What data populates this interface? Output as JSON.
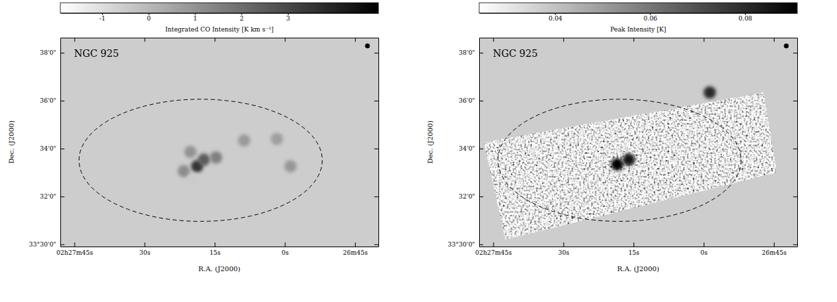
{
  "chart_data": [
    {
      "type": "heatmap",
      "title": "NGC 925",
      "x_label": "R.A. (J2000)",
      "y_label": "Dec. (J2000)",
      "xlim": [
        8868,
        8800
      ],
      "xticks": [
        {
          "value": 8865,
          "label": "02h27m45s"
        },
        {
          "value": 8850,
          "label": "30s"
        },
        {
          "value": 8835,
          "label": "15s"
        },
        {
          "value": 8820,
          "label": "0s"
        },
        {
          "value": 8805,
          "label": "26m45s"
        }
      ],
      "ylim": [
        29.91,
        38.63
      ],
      "yticks": [
        {
          "value": 30,
          "label": "33°30'0\""
        },
        {
          "value": 32,
          "label": "32'0\""
        },
        {
          "value": 34,
          "label": "34'0\""
        },
        {
          "value": 36,
          "label": "36'0\""
        },
        {
          "value": 38,
          "label": "38'0\""
        }
      ],
      "colorbar": {
        "label": "Integrated CO Intensity [K km s⁻¹]",
        "range": [
          -1.9,
          4.95
        ],
        "ticks": [
          -1,
          0,
          1,
          2,
          3
        ]
      },
      "sources": {
        "x": [
          8838.75,
          8837.3,
          8834.7,
          8841.6,
          8840.2,
          8828.7,
          8821.7,
          8818.8,
          8839.5
        ],
        "y": [
          33.26,
          33.54,
          33.63,
          33.06,
          33.86,
          34.34,
          34.4,
          33.26,
          32.71
        ],
        "values": [
          3.5,
          2.5,
          1.5,
          1.2,
          1.0,
          0.8,
          0.7,
          0.9,
          -0.5
        ]
      },
      "ellipse": {
        "x": 8838,
        "y": 33.51,
        "rx": 26,
        "ry": 2.55
      }
    },
    {
      "type": "heatmap",
      "title": "NGC 925",
      "x_label": "R.A. (J2000)",
      "y_label": "Dec. (J2000)",
      "xlim": [
        8868,
        8800
      ],
      "xticks": [
        {
          "value": 8865,
          "label": "02h27m45s"
        },
        {
          "value": 8850,
          "label": "30s"
        },
        {
          "value": 8835,
          "label": "15s"
        },
        {
          "value": 8820,
          "label": "0s"
        },
        {
          "value": 8805,
          "label": "26m45s"
        }
      ],
      "ylim": [
        29.91,
        38.63
      ],
      "yticks": [
        {
          "value": 30,
          "label": "33°30'0\""
        },
        {
          "value": 32,
          "label": "32'0\""
        },
        {
          "value": 34,
          "label": "34'0\""
        },
        {
          "value": 36,
          "label": "36'0\""
        },
        {
          "value": 38,
          "label": "38'0\""
        }
      ],
      "colorbar": {
        "label": "Peak Intensity [K]",
        "range": [
          0.024,
          0.091
        ],
        "ticks": [
          0.04,
          0.06,
          0.08
        ]
      },
      "coverage": {
        "x": [
          8867.0,
          8807.2,
          8804.3,
          8862.4
        ],
        "y": [
          34.26,
          36.34,
          33.0,
          30.2
        ]
      },
      "sources": {
        "x": [
          8838.5,
          8836.0,
          8818.7
        ],
        "y": [
          33.34,
          33.54,
          36.34
        ],
        "values": [
          0.095,
          0.085,
          0.08
        ]
      },
      "ellipse": {
        "x": 8838,
        "y": 33.51,
        "rx": 26,
        "ry": 2.55
      }
    }
  ]
}
